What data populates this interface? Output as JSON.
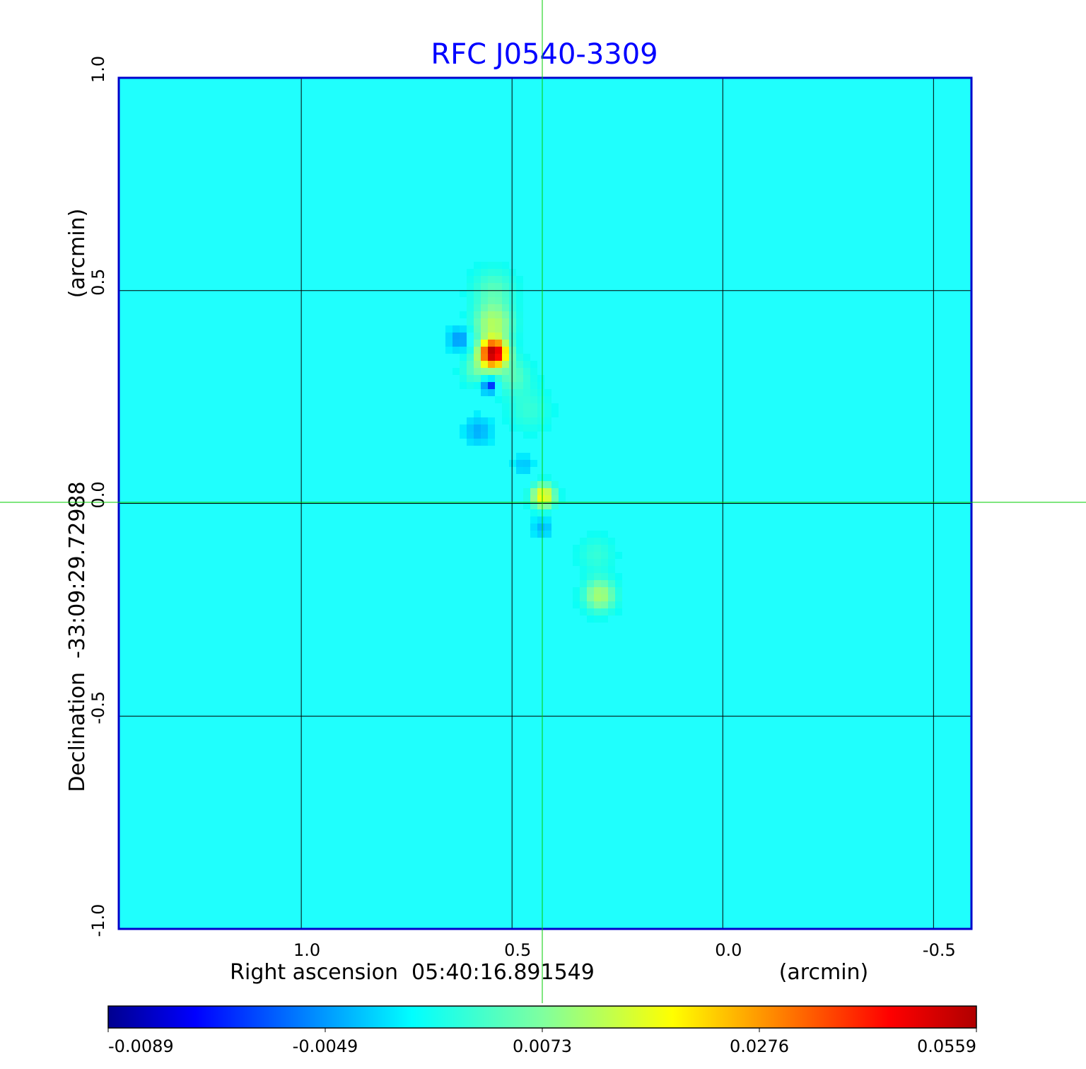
{
  "chart_data": {
    "type": "heatmap",
    "title": "RFC J0540-3309",
    "xlabel": "Right ascension  05:40:16.891549",
    "xunit": "(arcmin)",
    "ylabel": "Declination  -33:09:29.72988",
    "yunit": "(arcmin)",
    "xlim": [
      1.433,
      -0.59
    ],
    "ylim": [
      -1.0,
      1.0
    ],
    "x_ticks": [
      "1.0",
      "0.5",
      "0.0",
      "-0.5"
    ],
    "x_tick_values": [
      1.0,
      0.5,
      0.0,
      -0.5
    ],
    "y_ticks": [
      "1.0",
      "0.5",
      "0.0",
      "-0.5",
      "-1.0"
    ],
    "y_tick_values": [
      1.0,
      0.5,
      0.0,
      -0.5,
      -1.0
    ],
    "grid": true,
    "crosshair": {
      "ra_offset": 0.43,
      "dec_offset": 0.0
    },
    "colormap": "jet",
    "colorbar": {
      "placement": "bottom",
      "ticks": [
        "-0.0089",
        "-0.0049",
        "0.0073",
        "0.0276",
        "0.0559"
      ],
      "tick_values": [
        -0.0089,
        -0.0049,
        0.0073,
        0.0276,
        0.0559
      ]
    },
    "background_value": 0.0,
    "features": [
      {
        "ra": 0.544,
        "dec": 0.353,
        "value": 0.0559,
        "sigma": 0.02
      },
      {
        "ra": 0.544,
        "dec": 0.42,
        "value": 0.012,
        "sigma": 0.03
      },
      {
        "ra": 0.544,
        "dec": 0.5,
        "value": 0.005,
        "sigma": 0.035
      },
      {
        "ra": 0.58,
        "dec": 0.315,
        "value": 0.006,
        "sigma": 0.025
      },
      {
        "ra": 0.5,
        "dec": 0.3,
        "value": 0.005,
        "sigma": 0.03
      },
      {
        "ra": 0.46,
        "dec": 0.22,
        "value": 0.003,
        "sigma": 0.035
      },
      {
        "ra": 0.554,
        "dec": 0.278,
        "value": -0.0089,
        "sigma": 0.014
      },
      {
        "ra": 0.624,
        "dec": 0.386,
        "value": -0.0055,
        "sigma": 0.018
      },
      {
        "ra": 0.58,
        "dec": 0.17,
        "value": -0.004,
        "sigma": 0.022
      },
      {
        "ra": 0.473,
        "dec": 0.09,
        "value": -0.003,
        "sigma": 0.015
      },
      {
        "ra": 0.426,
        "dec": 0.017,
        "value": 0.02,
        "sigma": 0.018
      },
      {
        "ra": 0.428,
        "dec": -0.058,
        "value": -0.0035,
        "sigma": 0.016
      },
      {
        "ra": 0.292,
        "dec": -0.216,
        "value": 0.011,
        "sigma": 0.025
      },
      {
        "ra": 0.3,
        "dec": -0.12,
        "value": 0.003,
        "sigma": 0.03
      }
    ]
  },
  "colors": {
    "title": "#0000ff",
    "frame": "#0000cc",
    "crosshair": "#00cc00",
    "background": "#1ffffd"
  }
}
